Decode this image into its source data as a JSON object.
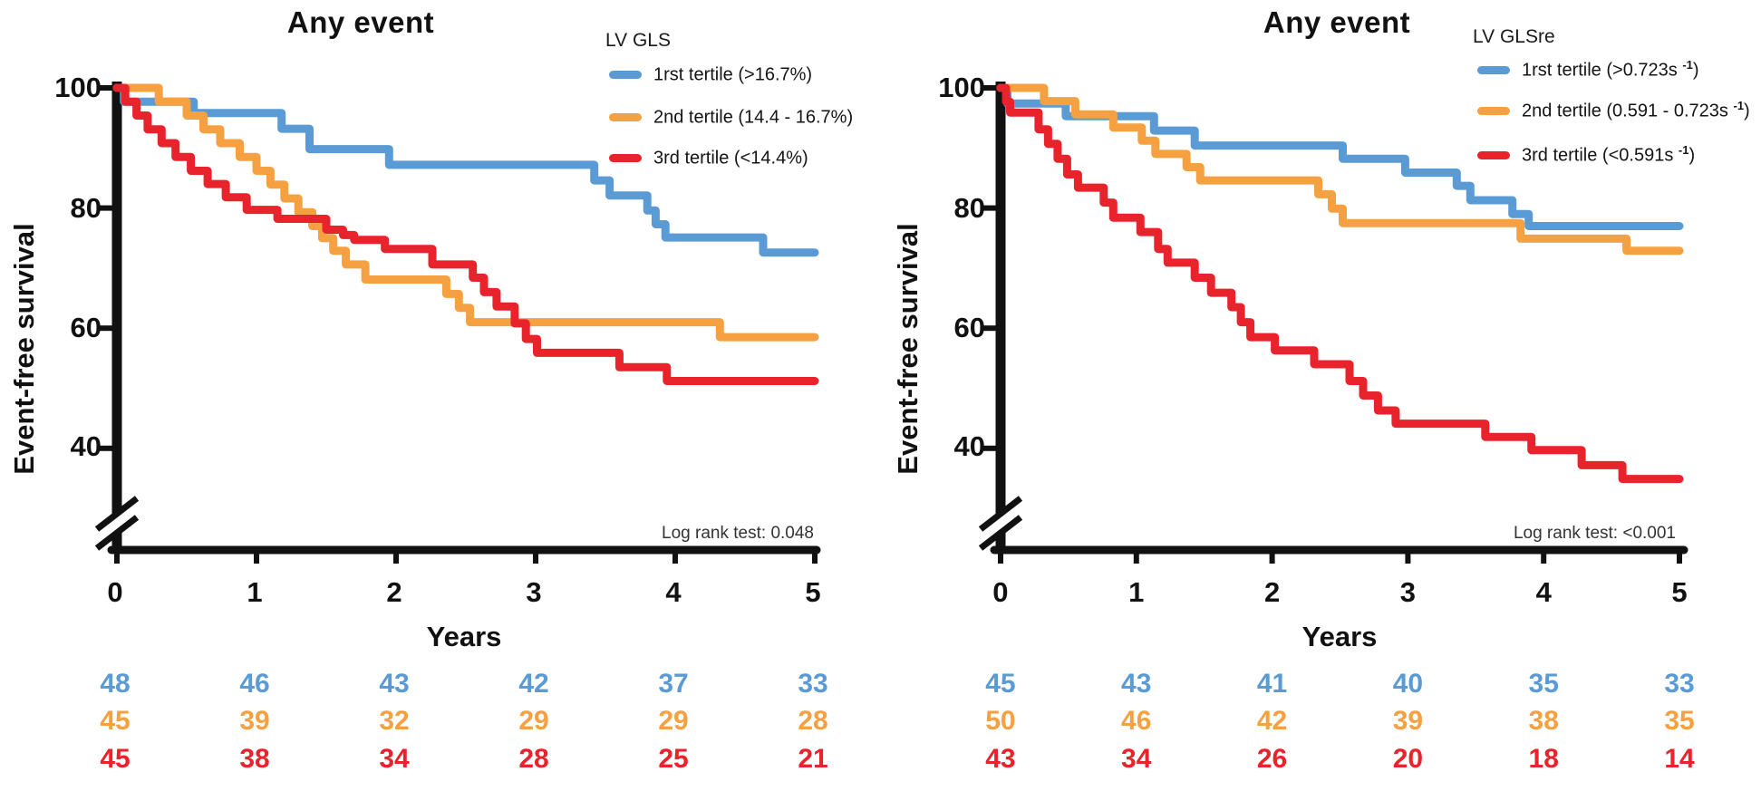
{
  "chart_data": [
    {
      "type": "line",
      "subtype": "kaplan-meier-step",
      "title": "Any event",
      "x_label": "Years",
      "y_label": "Event-free survival",
      "x_ticks": [
        "0",
        "1",
        "2",
        "3",
        "4",
        "5"
      ],
      "y_ticks": [
        "100",
        "80",
        "60",
        "40"
      ],
      "x_range": [
        0,
        5
      ],
      "y_range_shown": [
        40,
        100
      ],
      "axis_break_on_y": true,
      "legend_title": "LV GLS",
      "legend_position": "top-right",
      "log_rank": "Log rank test: 0.048",
      "series": [
        {
          "name": "1rst tertile (>16.7%)",
          "label_pre": "1rst tertile (>16.7%)",
          "label_sup": "",
          "label_post": "",
          "color": "#5B9BD5",
          "steps": [
            [
              0,
              100
            ],
            [
              0.05,
              97.7
            ],
            [
              0.55,
              95.8
            ],
            [
              1.18,
              93.2
            ],
            [
              1.38,
              89.8
            ],
            [
              1.95,
              87.2
            ],
            [
              3.42,
              84.6
            ],
            [
              3.53,
              82.1
            ],
            [
              3.8,
              79.6
            ],
            [
              3.86,
              77.3
            ],
            [
              3.93,
              75.1
            ],
            [
              4.63,
              72.6
            ],
            [
              5,
              72.6
            ]
          ]
        },
        {
          "name": "2nd tertile (14.4 - 16.7%)",
          "label_pre": "2nd tertile (14.4 - 16.7%)",
          "label_sup": "",
          "label_post": "",
          "color": "#F5A142",
          "steps": [
            [
              0,
              100
            ],
            [
              0.3,
              97.7
            ],
            [
              0.5,
              95.4
            ],
            [
              0.62,
              93.1
            ],
            [
              0.74,
              90.8
            ],
            [
              0.88,
              88.5
            ],
            [
              1,
              86.2
            ],
            [
              1.1,
              83.9
            ],
            [
              1.2,
              81.6
            ],
            [
              1.3,
              79.3
            ],
            [
              1.4,
              77
            ],
            [
              1.47,
              75
            ],
            [
              1.55,
              72.9
            ],
            [
              1.64,
              70.6
            ],
            [
              1.78,
              68.1
            ],
            [
              2.36,
              65.7
            ],
            [
              2.45,
              63.4
            ],
            [
              2.53,
              61
            ],
            [
              4.32,
              58.5
            ],
            [
              5,
              58.5
            ]
          ]
        },
        {
          "name": "3rd tertile (<14.4%)",
          "label_pre": "3rd tertile (<14.4%)",
          "label_sup": "",
          "label_post": "",
          "color": "#E8232B",
          "steps": [
            [
              0,
              100
            ],
            [
              0.06,
              97.7
            ],
            [
              0.14,
              95.4
            ],
            [
              0.22,
              93.1
            ],
            [
              0.32,
              90.8
            ],
            [
              0.42,
              88.5
            ],
            [
              0.53,
              86.2
            ],
            [
              0.65,
              84
            ],
            [
              0.78,
              81.8
            ],
            [
              0.93,
              79.7
            ],
            [
              1.15,
              78.2
            ],
            [
              1.5,
              76.4
            ],
            [
              1.62,
              75.5
            ],
            [
              1.7,
              74.7
            ],
            [
              1.92,
              73.2
            ],
            [
              2.26,
              70.6
            ],
            [
              2.55,
              68.4
            ],
            [
              2.63,
              66
            ],
            [
              2.72,
              63.6
            ],
            [
              2.85,
              60.8
            ],
            [
              2.93,
              58.2
            ],
            [
              3.01,
              55.9
            ],
            [
              3.6,
              53.5
            ],
            [
              3.94,
              51.2
            ],
            [
              5,
              51.2
            ]
          ]
        }
      ],
      "at_risk": {
        "rows": [
          [
            "48",
            "46",
            "43",
            "42",
            "37",
            "33"
          ],
          [
            "45",
            "39",
            "32",
            "29",
            "29",
            "28"
          ],
          [
            "45",
            "38",
            "34",
            "28",
            "25",
            "21"
          ]
        ]
      }
    },
    {
      "type": "line",
      "subtype": "kaplan-meier-step",
      "title": "Any event",
      "x_label": "Years",
      "y_label": "Event-free survival",
      "x_ticks": [
        "0",
        "1",
        "2",
        "3",
        "4",
        "5"
      ],
      "y_ticks": [
        "100",
        "80",
        "60",
        "40"
      ],
      "x_range": [
        0,
        5
      ],
      "y_range_shown": [
        40,
        100
      ],
      "axis_break_on_y": true,
      "legend_title": "LV GLSre",
      "legend_position": "top-right",
      "log_rank": "Log rank test: <0.001",
      "series": [
        {
          "name": "1rst tertile (>0.723s -1)",
          "label_pre": "1rst tertile (>0.723s ",
          "label_sup": "-1",
          "label_post": ")",
          "color": "#5B9BD5",
          "steps": [
            [
              0,
              100
            ],
            [
              0.05,
              97.4
            ],
            [
              0.48,
              95.3
            ],
            [
              1.13,
              92.9
            ],
            [
              1.43,
              90.4
            ],
            [
              2.52,
              88.2
            ],
            [
              2.98,
              85.9
            ],
            [
              3.36,
              83.7
            ],
            [
              3.46,
              81.3
            ],
            [
              3.77,
              79
            ],
            [
              3.89,
              77
            ],
            [
              5,
              77
            ]
          ]
        },
        {
          "name": "2nd tertile (0.591 - 0.723s -1)",
          "label_pre": "2nd tertile (0.591 - 0.723s ",
          "label_sup": "-1",
          "label_post": ")",
          "color": "#F5A142",
          "steps": [
            [
              0,
              100
            ],
            [
              0.32,
              97.8
            ],
            [
              0.55,
              95.6
            ],
            [
              0.83,
              93.4
            ],
            [
              1.04,
              91.2
            ],
            [
              1.14,
              89
            ],
            [
              1.37,
              86.8
            ],
            [
              1.47,
              84.6
            ],
            [
              2.34,
              82.3
            ],
            [
              2.44,
              79.9
            ],
            [
              2.52,
              77.5
            ],
            [
              3.83,
              74.9
            ],
            [
              4.61,
              72.9
            ],
            [
              5,
              72.9
            ]
          ]
        },
        {
          "name": "3rd tertile (<0.591s -1)",
          "label_pre": "3rd tertile (<0.591s ",
          "label_sup": "-1",
          "label_post": ")",
          "color": "#E8232B",
          "steps": [
            [
              0,
              100
            ],
            [
              0.04,
              97.7
            ],
            [
              0.07,
              95.9
            ],
            [
              0.28,
              93.1
            ],
            [
              0.35,
              90.7
            ],
            [
              0.42,
              88.2
            ],
            [
              0.49,
              85.6
            ],
            [
              0.57,
              83.4
            ],
            [
              0.76,
              80.9
            ],
            [
              0.83,
              78.4
            ],
            [
              1.03,
              76
            ],
            [
              1.16,
              73.2
            ],
            [
              1.23,
              70.9
            ],
            [
              1.43,
              68.4
            ],
            [
              1.55,
              65.9
            ],
            [
              1.7,
              63.5
            ],
            [
              1.77,
              61
            ],
            [
              1.84,
              58.5
            ],
            [
              2.02,
              56.3
            ],
            [
              2.31,
              54
            ],
            [
              2.57,
              51.2
            ],
            [
              2.67,
              48.8
            ],
            [
              2.78,
              46.3
            ],
            [
              2.91,
              44.1
            ],
            [
              3.57,
              41.9
            ],
            [
              3.91,
              39.7
            ],
            [
              4.28,
              37.2
            ],
            [
              4.58,
              34.9
            ],
            [
              5,
              34.9
            ]
          ]
        }
      ],
      "at_risk": {
        "rows": [
          [
            "45",
            "43",
            "41",
            "40",
            "35",
            "33"
          ],
          [
            "50",
            "46",
            "42",
            "39",
            "38",
            "35"
          ],
          [
            "43",
            "34",
            "26",
            "20",
            "18",
            "14"
          ]
        ]
      }
    }
  ]
}
